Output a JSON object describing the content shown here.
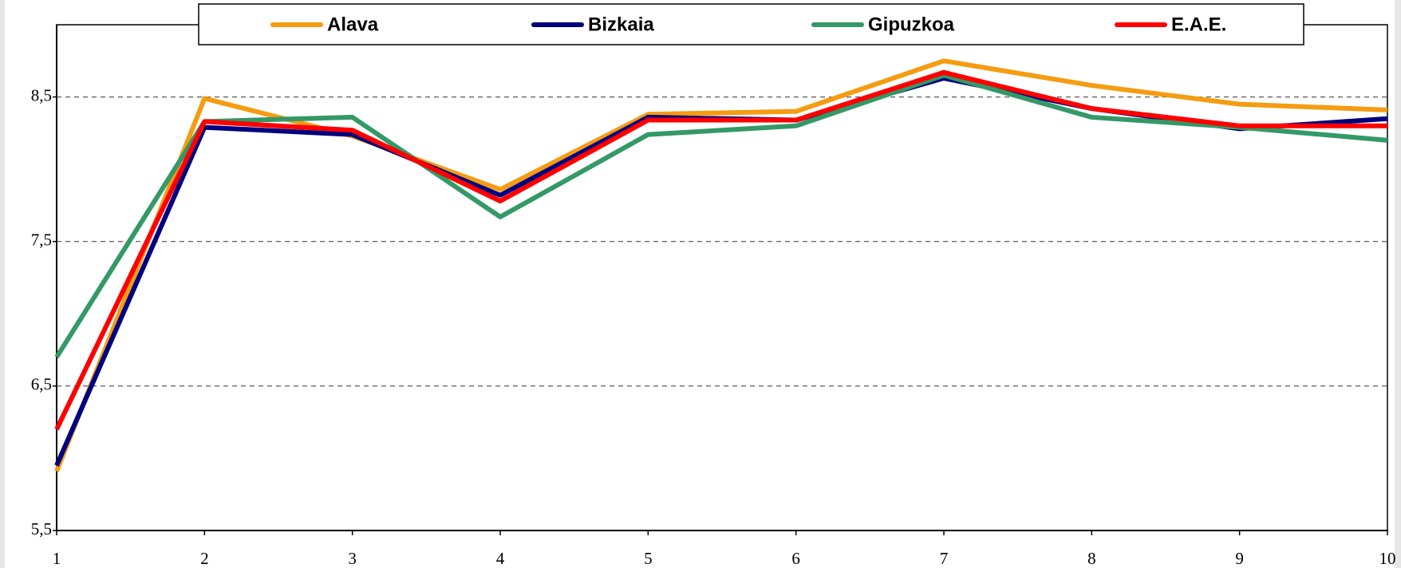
{
  "chart_data": {
    "type": "line",
    "x": [
      1,
      2,
      3,
      4,
      5,
      6,
      7,
      8,
      9,
      10
    ],
    "xlim": [
      1,
      10
    ],
    "xticks": [
      1,
      2,
      3,
      4,
      5,
      6,
      7,
      8,
      9,
      10
    ],
    "ylim": [
      5.5,
      9
    ],
    "yticks": [
      {
        "value": 5.5,
        "label": "5,5"
      },
      {
        "value": 6.5,
        "label": "6,5"
      },
      {
        "value": 7.5,
        "label": "7,5"
      },
      {
        "value": 8.5,
        "label": "8,5"
      }
    ],
    "grid": true,
    "legend": "top",
    "series": [
      {
        "name": "Alava",
        "color": "#f59c12",
        "values": [
          5.91,
          8.49,
          8.23,
          7.86,
          8.38,
          8.4,
          8.75,
          8.58,
          8.45,
          8.41
        ]
      },
      {
        "name": "Bizkaia",
        "color": "#00007f",
        "values": [
          5.95,
          8.29,
          8.24,
          7.82,
          8.36,
          8.34,
          8.63,
          8.42,
          8.28,
          8.35
        ]
      },
      {
        "name": "Gipuzkoa",
        "color": "#339966",
        "values": [
          6.7,
          8.33,
          8.36,
          7.67,
          8.24,
          8.3,
          8.65,
          8.36,
          8.29,
          8.2
        ]
      },
      {
        "name": "E.A.E.",
        "color": "#ff0000",
        "values": [
          6.2,
          8.33,
          8.27,
          7.78,
          8.34,
          8.34,
          8.67,
          8.42,
          8.3,
          8.3
        ]
      }
    ]
  }
}
